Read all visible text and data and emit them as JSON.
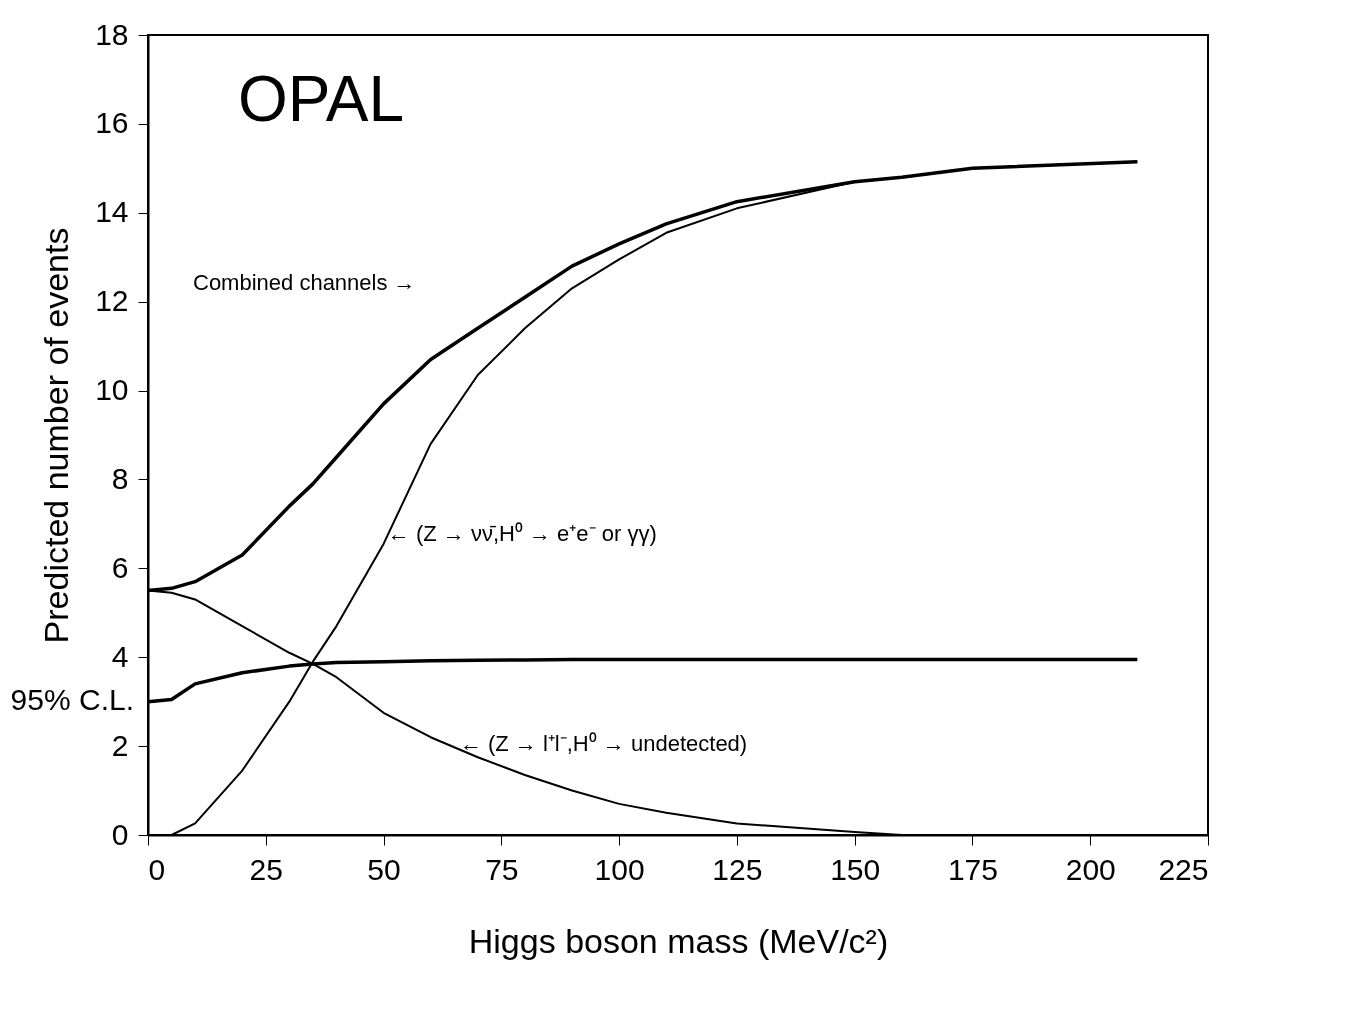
{
  "chart_data": {
    "type": "line",
    "xlabel": "Higgs boson mass (MeV/c²)",
    "ylabel": "Predicted number of events",
    "x": [
      0,
      5,
      10,
      20,
      30,
      35,
      40,
      50,
      60,
      70,
      80,
      90,
      100,
      110,
      125,
      150,
      160,
      175,
      210
    ],
    "xlim": [
      0,
      225
    ],
    "xticks": [
      0,
      25,
      50,
      75,
      100,
      125,
      150,
      175,
      200,
      225
    ],
    "ylim": [
      0,
      18
    ],
    "yticks": [
      0,
      2,
      4,
      6,
      8,
      10,
      12,
      14,
      16,
      18
    ],
    "series": [
      {
        "color": "#000000",
        "values": [
          5.5,
          5.55,
          5.7,
          6.3,
          7.4,
          7.9,
          8.5,
          9.7,
          10.7,
          11.4,
          12.1,
          12.8,
          13.3,
          13.75,
          14.25,
          14.7,
          14.8,
          15.0,
          15.15
        ]
      },
      {
        "color": "#000000",
        "values": [
          null,
          0,
          0.26,
          1.45,
          3.0,
          3.9,
          4.7,
          6.55,
          8.8,
          10.35,
          11.4,
          12.3,
          12.95,
          13.55,
          14.1,
          14.7,
          14.8,
          15.0,
          15.15
        ]
      },
      {
        "color": "#000000",
        "values": [
          5.5,
          5.45,
          5.3,
          4.7,
          4.1,
          3.85,
          3.55,
          2.75,
          2.2,
          1.75,
          1.35,
          1.0,
          0.7,
          0.5,
          0.26,
          0.07,
          0,
          0,
          0
        ]
      },
      {
        "name": "95% C.L.",
        "color": "#000000",
        "values": [
          3.0,
          3.05,
          3.4,
          3.65,
          3.8,
          3.85,
          3.88,
          3.9,
          3.92,
          3.93,
          3.94,
          3.95,
          3.95,
          3.95,
          3.95,
          3.95,
          3.95,
          3.95,
          3.95
        ]
      }
    ],
    "annotations": [
      "OPAL",
      "Combined channels →",
      {
        "text": "← (Z → νν̄,H⁰ → e⁺e⁻ or γγ)",
        "x": 50.9,
        "y": 6.77
      },
      {
        "text": "← (Z → l⁺l⁻,H⁰ → undetected)",
        "x": 66.2,
        "y": 2.04
      }
    ]
  }
}
